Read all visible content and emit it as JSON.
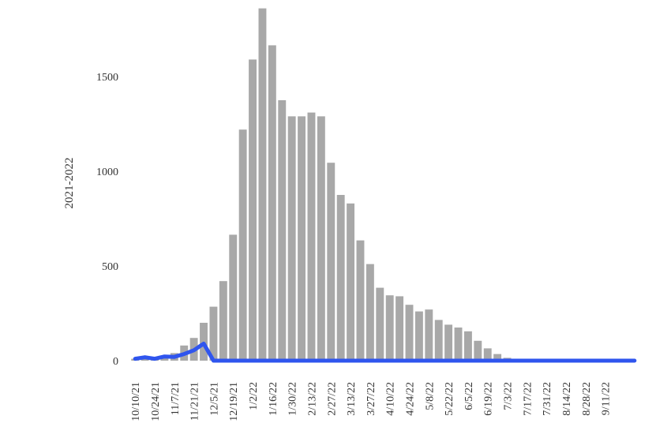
{
  "chart_data": {
    "type": "bar",
    "title": "",
    "xlabel": "",
    "ylabel": "2021-2022",
    "ylim": [
      0,
      1850
    ],
    "yticks": [
      0,
      500,
      1000,
      1500
    ],
    "grid": false,
    "legend": "none",
    "x": [
      "10/10/21",
      "10/17/21",
      "10/24/21",
      "10/31/21",
      "11/7/21",
      "11/14/21",
      "11/21/21",
      "11/28/21",
      "12/5/21",
      "12/12/21",
      "12/19/21",
      "12/26/21",
      "1/2/22",
      "1/9/22",
      "1/16/22",
      "1/23/22",
      "1/30/22",
      "2/6/22",
      "2/13/22",
      "2/20/22",
      "2/27/22",
      "3/6/22",
      "3/13/22",
      "3/20/22",
      "3/27/22",
      "4/3/22",
      "4/10/22",
      "4/17/22",
      "4/24/22",
      "5/1/22",
      "5/8/22",
      "5/15/22",
      "5/22/22",
      "5/29/22",
      "6/5/22",
      "6/12/22",
      "6/19/22",
      "6/26/22",
      "7/3/22",
      "7/10/22",
      "7/17/22",
      "7/24/22",
      "7/31/22",
      "8/7/22",
      "8/14/22",
      "8/21/22",
      "8/28/22",
      "9/4/22",
      "9/11/22",
      "9/18/22",
      "9/25/22",
      "10/2/22"
    ],
    "tick_labels": [
      "10/10/21",
      "10/24/21",
      "11/7/21",
      "11/21/21",
      "12/5/21",
      "12/19/21",
      "1/2/22",
      "1/16/22",
      "1/30/22",
      "2/13/22",
      "2/27/22",
      "3/13/22",
      "3/27/22",
      "4/10/22",
      "4/24/22",
      "5/8/22",
      "5/22/22",
      "6/5/22",
      "6/19/22",
      "7/3/22",
      "7/17/22",
      "7/31/22",
      "8/14/22",
      "8/28/22",
      "9/11/22"
    ],
    "series": [
      {
        "kind": "bar",
        "color": "#a8a8a8",
        "values": [
          10,
          15,
          15,
          25,
          40,
          80,
          120,
          200,
          285,
          420,
          665,
          1220,
          1590,
          1860,
          1665,
          1375,
          1290,
          1290,
          1310,
          1290,
          1045,
          875,
          830,
          635,
          510,
          385,
          345,
          340,
          295,
          260,
          270,
          215,
          190,
          175,
          155,
          105,
          65,
          35,
          15,
          5,
          0,
          0,
          0,
          0,
          0,
          0,
          0,
          0,
          0,
          0,
          0,
          0
        ]
      },
      {
        "kind": "line",
        "color": "#2f55ee",
        "values": [
          10,
          18,
          10,
          22,
          20,
          35,
          55,
          90,
          0,
          0,
          0,
          0,
          0,
          0,
          0,
          0,
          0,
          0,
          0,
          0,
          0,
          0,
          0,
          0,
          0,
          0,
          0,
          0,
          0,
          0,
          0,
          0,
          0,
          0,
          0,
          0,
          0,
          0,
          0,
          0,
          0,
          0,
          0,
          0,
          0,
          0,
          0,
          0,
          0,
          0,
          0,
          0
        ]
      }
    ]
  }
}
